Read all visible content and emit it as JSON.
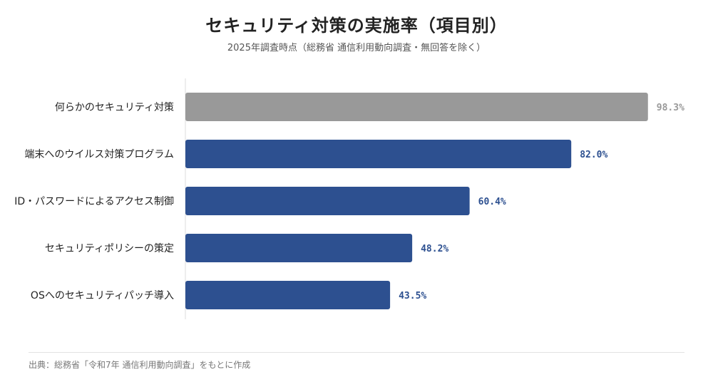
{
  "chart_data": {
    "type": "bar",
    "orientation": "horizontal",
    "title": "セキュリティ対策の実施率（項目別）",
    "subtitle": "2025年調査時点（総務省 通信利用動向調査・無回答を除く）",
    "categories": [
      "何らかのセキュリティ対策",
      "端末へのウイルス対策プログラム",
      "ID・パスワードによるアクセス制御",
      "セキュリティポリシーの策定",
      "OSへのセキュリティパッチ導入"
    ],
    "values": [
      98.3,
      82.0,
      60.4,
      48.2,
      43.5
    ],
    "value_labels": [
      "98.3%",
      "82.0%",
      "60.4%",
      "48.2%",
      "43.5%"
    ],
    "highlight_index": 0,
    "xlim": [
      0,
      100
    ],
    "grid": false,
    "legend": "none",
    "colors": {
      "highlight": "#999999",
      "bar": "#2d5090",
      "highlight_label": "#999999",
      "bar_label": "#2d5090",
      "axis": "#dddddd"
    }
  },
  "source": "出典：総務省「令和7年 通信利用動向調査」をもとに作成"
}
